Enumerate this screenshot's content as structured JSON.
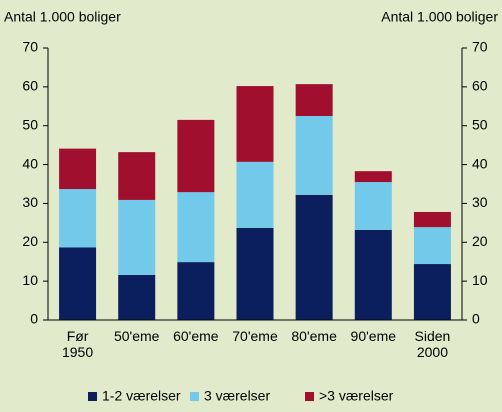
{
  "chart_data": {
    "type": "stacked_bar",
    "y_label": "Antal 1.000 boliger",
    "y2_label": "Antal 1.000 boliger",
    "categories": [
      "Før 1950",
      "50'eme",
      "60'eme",
      "70'eme",
      "80'eme",
      "90'eme",
      "Siden 2000"
    ],
    "series": [
      {
        "name": "1-2 værelser",
        "color": "#0b1f5e",
        "values": [
          18.7,
          11.6,
          14.9,
          23.7,
          32.2,
          23.2,
          14.4
        ]
      },
      {
        "name": "3 værelser",
        "color": "#72c9ea",
        "values": [
          15,
          19.3,
          18,
          17,
          20.3,
          12.3,
          9.5
        ]
      },
      {
        "name": ">3 værelser",
        "color": "#a0102e",
        "values": [
          10.4,
          12.3,
          18.6,
          19.5,
          8.2,
          2.8,
          3.9
        ]
      }
    ],
    "ylim": [
      0,
      70
    ],
    "yticks": [
      0,
      10,
      20,
      30,
      40,
      50,
      60,
      70
    ],
    "y2lim": [
      0,
      70
    ],
    "y2ticks": [
      0,
      10,
      20,
      30,
      40,
      50,
      60,
      70
    ],
    "legend": "bottom"
  }
}
